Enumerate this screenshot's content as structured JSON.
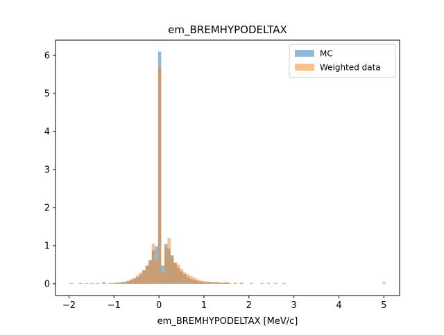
{
  "chart_data": {
    "type": "histogram",
    "title": "em_BREMHYPODELTAX",
    "xlabel": "em_BREMHYPODELTAX [MeV/c]",
    "ylabel": "",
    "xlim": [
      -2.3,
      5.35
    ],
    "ylim": [
      -0.31,
      6.4
    ],
    "xticks": [
      -2,
      -1,
      0,
      1,
      2,
      3,
      4,
      5
    ],
    "xtick_labels": [
      "−2",
      "−1",
      "0",
      "1",
      "2",
      "3",
      "4",
      "5"
    ],
    "yticks": [
      0,
      1,
      2,
      3,
      4,
      5,
      6
    ],
    "ytick_labels": [
      "0",
      "1",
      "2",
      "3",
      "4",
      "5",
      "6"
    ],
    "grid": false,
    "legend_position": "top-right",
    "bin_width": 0.07,
    "series": [
      {
        "name": "MC",
        "color": "#1f77b4",
        "opacity": 0.5,
        "bins": [
          [
            -1.98,
            0.02
          ],
          [
            -1.78,
            0.02
          ],
          [
            -1.64,
            0.02
          ],
          [
            -1.52,
            0.02
          ],
          [
            -1.4,
            0.02
          ],
          [
            -1.26,
            0.03
          ],
          [
            -1.12,
            0.02
          ],
          [
            -1.0,
            0.03
          ],
          [
            -0.93,
            0.03
          ],
          [
            -0.86,
            0.04
          ],
          [
            -0.79,
            0.05
          ],
          [
            -0.72,
            0.07
          ],
          [
            -0.65,
            0.1
          ],
          [
            -0.58,
            0.13
          ],
          [
            -0.51,
            0.18
          ],
          [
            -0.44,
            0.25
          ],
          [
            -0.37,
            0.35
          ],
          [
            -0.3,
            0.48
          ],
          [
            -0.23,
            0.62
          ],
          [
            -0.16,
            0.88
          ],
          [
            -0.09,
            0.98
          ],
          [
            -0.02,
            6.1
          ],
          [
            0.05,
            0.48
          ],
          [
            0.12,
            1.05
          ],
          [
            0.19,
            0.92
          ],
          [
            0.26,
            0.75
          ],
          [
            0.33,
            0.55
          ],
          [
            0.4,
            0.42
          ],
          [
            0.47,
            0.32
          ],
          [
            0.54,
            0.25
          ],
          [
            0.61,
            0.18
          ],
          [
            0.68,
            0.13
          ],
          [
            0.75,
            0.1
          ],
          [
            0.82,
            0.08
          ],
          [
            0.89,
            0.06
          ],
          [
            0.96,
            0.05
          ],
          [
            1.03,
            0.04
          ],
          [
            1.1,
            0.04
          ],
          [
            1.17,
            0.03
          ],
          [
            1.24,
            0.03
          ],
          [
            1.31,
            0.03
          ],
          [
            1.38,
            0.02
          ],
          [
            1.45,
            0.02
          ],
          [
            1.52,
            0.02
          ],
          [
            1.66,
            0.02
          ],
          [
            1.8,
            0.02
          ],
          [
            2.02,
            0.02
          ],
          [
            2.26,
            0.02
          ],
          [
            2.4,
            0.02
          ],
          [
            2.56,
            0.02
          ],
          [
            2.74,
            0.02
          ]
        ]
      },
      {
        "name": "Weighted data",
        "color": "#ff7f0e",
        "opacity": 0.5,
        "bins": [
          [
            -1.26,
            0.04
          ],
          [
            -1.05,
            0.02
          ],
          [
            -0.93,
            0.03
          ],
          [
            -0.86,
            0.04
          ],
          [
            -0.79,
            0.05
          ],
          [
            -0.72,
            0.08
          ],
          [
            -0.65,
            0.12
          ],
          [
            -0.58,
            0.16
          ],
          [
            -0.51,
            0.22
          ],
          [
            -0.44,
            0.3
          ],
          [
            -0.37,
            0.36
          ],
          [
            -0.3,
            0.48
          ],
          [
            -0.23,
            0.6
          ],
          [
            -0.16,
            1.05
          ],
          [
            -0.09,
            0.62
          ],
          [
            -0.02,
            5.7
          ],
          [
            0.05,
            0.3
          ],
          [
            0.12,
            0.95
          ],
          [
            0.19,
            1.2
          ],
          [
            0.26,
            0.68
          ],
          [
            0.33,
            0.55
          ],
          [
            0.4,
            0.5
          ],
          [
            0.47,
            0.38
          ],
          [
            0.54,
            0.3
          ],
          [
            0.61,
            0.25
          ],
          [
            0.68,
            0.2
          ],
          [
            0.75,
            0.16
          ],
          [
            0.82,
            0.12
          ],
          [
            0.89,
            0.09
          ],
          [
            0.96,
            0.07
          ],
          [
            1.03,
            0.06
          ],
          [
            1.1,
            0.05
          ],
          [
            1.17,
            0.04
          ],
          [
            1.24,
            0.05
          ],
          [
            1.31,
            0.03
          ],
          [
            1.38,
            0.03
          ],
          [
            1.45,
            0.05
          ],
          [
            1.52,
            0.03
          ],
          [
            1.66,
            0.02
          ],
          [
            1.8,
            0.02
          ],
          [
            4.97,
            0.05
          ]
        ]
      }
    ]
  }
}
